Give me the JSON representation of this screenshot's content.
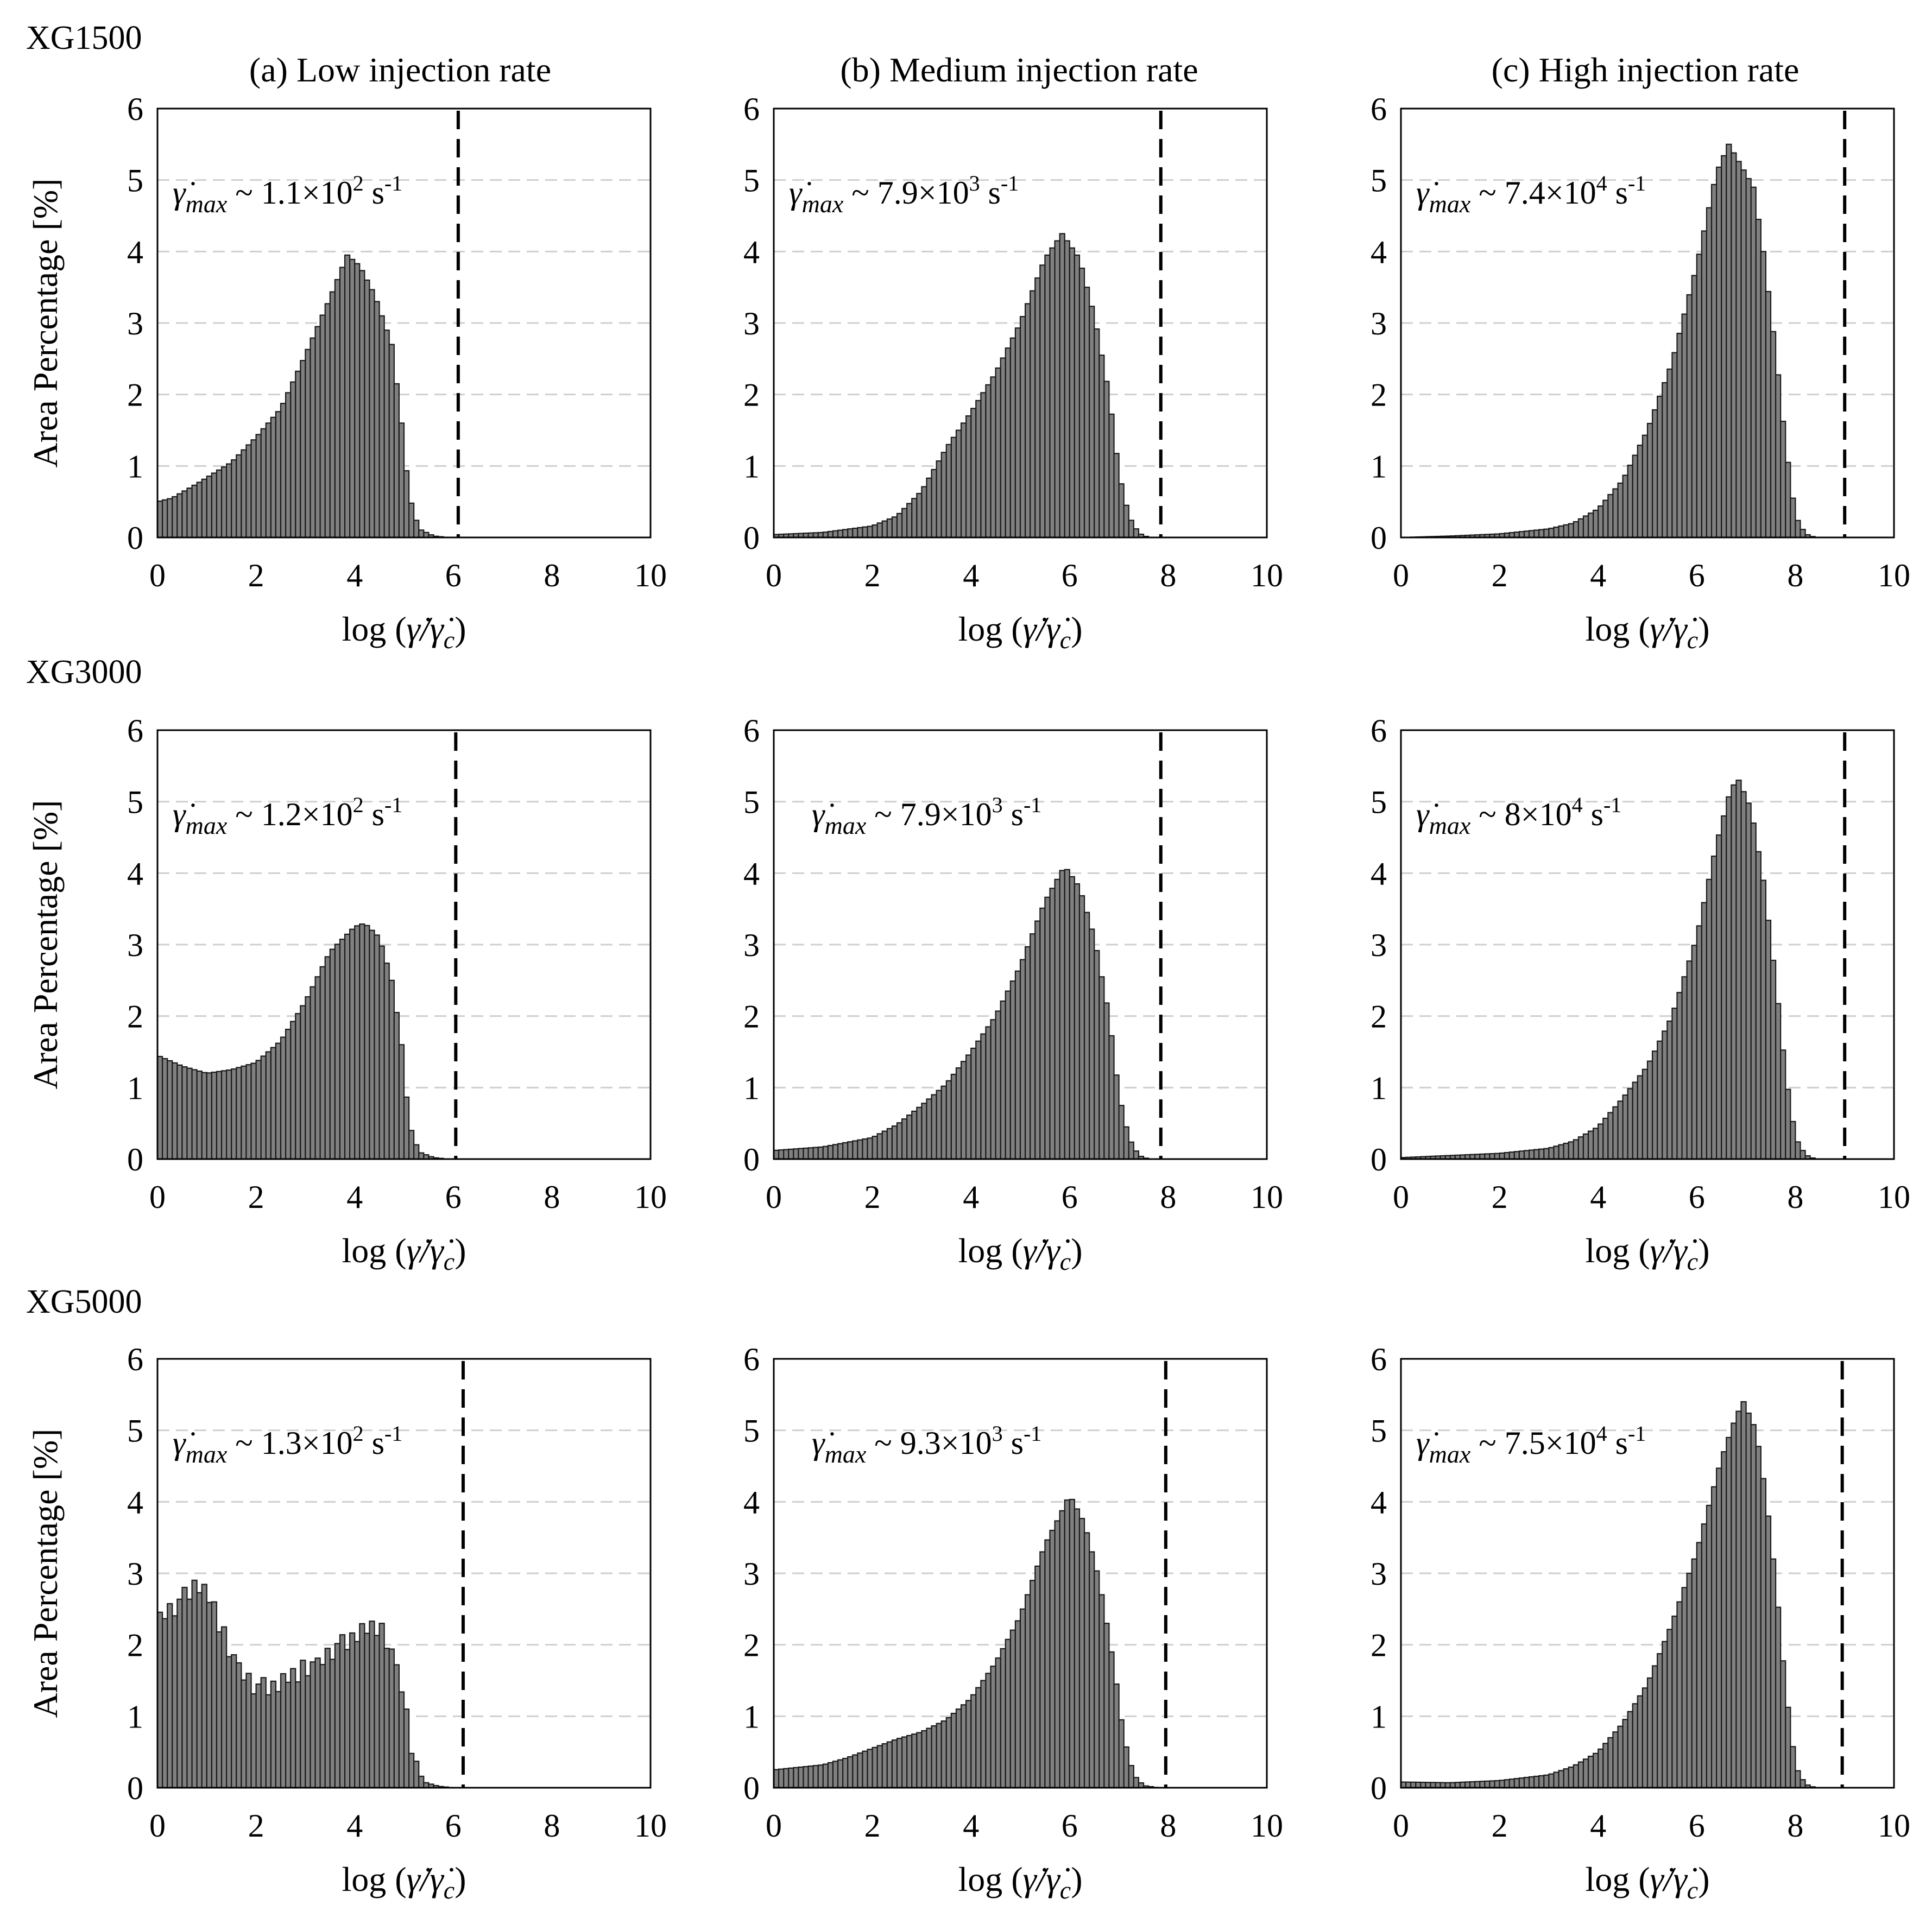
{
  "figure": {
    "row_labels": [
      "XG1500",
      "XG3000",
      "XG5000"
    ],
    "column_titles": [
      "(a) Low injection rate",
      "(b) Medium injection rate",
      "(c) High injection rate"
    ],
    "y_axis_label": "Area Percentage [%]",
    "x_axis_label": "log (γ̇/γ̇c)",
    "x_ticks": [
      "0",
      "2",
      "4",
      "6",
      "8",
      "10"
    ],
    "y_ticks": [
      "0",
      "1",
      "2",
      "3",
      "4",
      "5",
      "6"
    ]
  },
  "chart_data": [
    {
      "type": "bar",
      "row": 0,
      "col": 0,
      "title": "XG1500 (a) Low injection rate",
      "xlabel": "log (γ̇/γ̇c)",
      "ylabel": "Area Percentage [%]",
      "xlim": [
        0,
        10
      ],
      "ylim": [
        0,
        6
      ],
      "bin_width": 0.1,
      "annotation": {
        "prefix": "γ̇",
        "sub": "max",
        "text": " ~ 1.1×10",
        "exp": "2",
        "unit": " s",
        "unit_exp": "-1"
      },
      "critical_line_x": 6.1,
      "profile": [
        [
          0,
          0.5
        ],
        [
          0.3,
          0.55
        ],
        [
          0.8,
          0.75
        ],
        [
          1.5,
          1.05
        ],
        [
          2.0,
          1.4
        ],
        [
          2.5,
          1.8
        ],
        [
          3.0,
          2.55
        ],
        [
          3.5,
          3.35
        ],
        [
          3.85,
          3.95
        ],
        [
          4.1,
          3.8
        ],
        [
          4.4,
          3.4
        ],
        [
          4.75,
          2.7
        ],
        [
          4.95,
          1.6
        ],
        [
          5.1,
          0.6
        ],
        [
          5.3,
          0.12
        ],
        [
          5.6,
          0.02
        ],
        [
          5.9,
          0
        ]
      ]
    },
    {
      "type": "bar",
      "row": 0,
      "col": 1,
      "title": "XG1500 (b) Medium injection rate",
      "xlabel": "log (γ̇/γ̇c)",
      "ylabel": "Area Percentage [%]",
      "xlim": [
        0,
        10
      ],
      "ylim": [
        0,
        6
      ],
      "bin_width": 0.1,
      "annotation": {
        "prefix": "γ̇",
        "sub": "max",
        "text": " ~ 7.9×10",
        "exp": "3",
        "unit": " s",
        "unit_exp": "-1"
      },
      "critical_line_x": 7.85,
      "profile": [
        [
          0,
          0.04
        ],
        [
          1.0,
          0.07
        ],
        [
          2.0,
          0.16
        ],
        [
          2.5,
          0.3
        ],
        [
          3.0,
          0.65
        ],
        [
          3.5,
          1.25
        ],
        [
          4.0,
          1.75
        ],
        [
          4.5,
          2.3
        ],
        [
          5.0,
          3.0
        ],
        [
          5.5,
          3.9
        ],
        [
          5.85,
          4.25
        ],
        [
          6.2,
          3.9
        ],
        [
          6.5,
          3.1
        ],
        [
          6.8,
          2.0
        ],
        [
          7.0,
          0.9
        ],
        [
          7.2,
          0.3
        ],
        [
          7.4,
          0.06
        ],
        [
          7.6,
          0.0
        ]
      ]
    },
    {
      "type": "bar",
      "row": 0,
      "col": 2,
      "title": "XG1500 (c) High injection rate",
      "xlabel": "log (γ̇/γ̇c)",
      "ylabel": "Area Percentage [%]",
      "xlim": [
        0,
        10
      ],
      "ylim": [
        0,
        6
      ],
      "bin_width": 0.1,
      "annotation": {
        "prefix": "γ̇",
        "sub": "max",
        "text": " ~ 7.4×10",
        "exp": "4",
        "unit": " s",
        "unit_exp": "-1"
      },
      "critical_line_x": 9.0,
      "profile": [
        [
          0,
          0
        ],
        [
          1.0,
          0.02
        ],
        [
          2.0,
          0.05
        ],
        [
          3.0,
          0.12
        ],
        [
          3.5,
          0.2
        ],
        [
          4.0,
          0.4
        ],
        [
          4.5,
          0.8
        ],
        [
          5.0,
          1.5
        ],
        [
          5.5,
          2.45
        ],
        [
          6.0,
          3.8
        ],
        [
          6.4,
          5.1
        ],
        [
          6.65,
          5.5
        ],
        [
          6.9,
          5.2
        ],
        [
          7.15,
          4.9
        ],
        [
          7.35,
          4.0
        ],
        [
          7.6,
          2.6
        ],
        [
          7.8,
          1.3
        ],
        [
          8.0,
          0.3
        ],
        [
          8.2,
          0.05
        ],
        [
          8.4,
          0
        ]
      ]
    },
    {
      "type": "bar",
      "row": 1,
      "col": 0,
      "title": "XG3000 (a) Low injection rate",
      "xlabel": "log (γ̇/γ̇c)",
      "ylabel": "Area Percentage [%]",
      "xlim": [
        0,
        10
      ],
      "ylim": [
        0,
        6
      ],
      "bin_width": 0.1,
      "annotation": {
        "prefix": "γ̇",
        "sub": "max",
        "text": " ~ 1.2×10",
        "exp": "2",
        "unit": " s",
        "unit_exp": "-1"
      },
      "critical_line_x": 6.05,
      "profile": [
        [
          0,
          1.45
        ],
        [
          0.5,
          1.3
        ],
        [
          1.0,
          1.2
        ],
        [
          1.5,
          1.25
        ],
        [
          2.0,
          1.35
        ],
        [
          2.5,
          1.65
        ],
        [
          3.0,
          2.2
        ],
        [
          3.5,
          2.9
        ],
        [
          4.0,
          3.25
        ],
        [
          4.2,
          3.3
        ],
        [
          4.5,
          3.1
        ],
        [
          4.75,
          2.5
        ],
        [
          4.95,
          1.6
        ],
        [
          5.1,
          0.5
        ],
        [
          5.3,
          0.1
        ],
        [
          5.6,
          0.02
        ],
        [
          5.9,
          0
        ]
      ]
    },
    {
      "type": "bar",
      "row": 1,
      "col": 1,
      "title": "XG3000 (b) Medium injection rate",
      "xlabel": "log (γ̇/γ̇c)",
      "ylabel": "Area Percentage [%]",
      "xlim": [
        0,
        10
      ],
      "ylim": [
        0,
        6
      ],
      "bin_width": 0.1,
      "annotation": {
        "prefix": "γ̇",
        "sub": "max",
        "text": " ~ 7.9×10",
        "exp": "3",
        "unit": " s",
        "unit_exp": "-1"
      },
      "critical_line_x": 7.85,
      "profile": [
        [
          0,
          0.12
        ],
        [
          1.0,
          0.17
        ],
        [
          2.0,
          0.3
        ],
        [
          2.5,
          0.48
        ],
        [
          3.0,
          0.75
        ],
        [
          3.5,
          1.05
        ],
        [
          4.0,
          1.5
        ],
        [
          4.5,
          2.0
        ],
        [
          5.0,
          2.7
        ],
        [
          5.5,
          3.6
        ],
        [
          5.9,
          4.1
        ],
        [
          6.2,
          3.8
        ],
        [
          6.5,
          3.1
        ],
        [
          6.8,
          2.0
        ],
        [
          7.0,
          0.9
        ],
        [
          7.2,
          0.3
        ],
        [
          7.4,
          0.05
        ],
        [
          7.6,
          0.0
        ]
      ]
    },
    {
      "type": "bar",
      "row": 1,
      "col": 2,
      "title": "XG3000 (c) High injection rate",
      "xlabel": "log (γ̇/γ̇c)",
      "ylabel": "Area Percentage [%]",
      "xlim": [
        0,
        10
      ],
      "ylim": [
        0,
        6
      ],
      "bin_width": 0.1,
      "annotation": {
        "prefix": "γ̇",
        "sub": "max",
        "text": " ~ 8×10",
        "exp": "4",
        "unit": " s",
        "unit_exp": "-1"
      },
      "critical_line_x": 9.0,
      "profile": [
        [
          0,
          0.02
        ],
        [
          1.0,
          0.05
        ],
        [
          2.0,
          0.08
        ],
        [
          3.0,
          0.15
        ],
        [
          3.5,
          0.25
        ],
        [
          4.0,
          0.45
        ],
        [
          4.5,
          0.85
        ],
        [
          5.0,
          1.3
        ],
        [
          5.5,
          2.0
        ],
        [
          6.0,
          3.1
        ],
        [
          6.4,
          4.4
        ],
        [
          6.7,
          5.2
        ],
        [
          6.85,
          5.3
        ],
        [
          7.1,
          4.9
        ],
        [
          7.35,
          3.9
        ],
        [
          7.6,
          2.5
        ],
        [
          7.8,
          1.2
        ],
        [
          8.0,
          0.3
        ],
        [
          8.2,
          0.06
        ],
        [
          8.4,
          0
        ]
      ]
    },
    {
      "type": "bar",
      "row": 2,
      "col": 0,
      "title": "XG5000 (a) Low injection rate",
      "xlabel": "log (γ̇/γ̇c)",
      "ylabel": "Area Percentage [%]",
      "xlim": [
        0,
        10
      ],
      "ylim": [
        0,
        6
      ],
      "bin_width": 0.1,
      "annotation": {
        "prefix": "γ̇",
        "sub": "max",
        "text": " ~ 1.3×10",
        "exp": "2",
        "unit": " s",
        "unit_exp": "-1"
      },
      "critical_line_x": 6.2,
      "profile": [
        [
          0,
          2.35
        ],
        [
          0.4,
          2.55
        ],
        [
          0.8,
          2.85
        ],
        [
          1.1,
          2.6
        ],
        [
          1.4,
          2.0
        ],
        [
          1.7,
          1.6
        ],
        [
          2.0,
          1.4
        ],
        [
          2.4,
          1.4
        ],
        [
          2.7,
          1.55
        ],
        [
          3.0,
          1.65
        ],
        [
          3.3,
          1.75
        ],
        [
          3.6,
          1.95
        ],
        [
          3.9,
          2.05
        ],
        [
          4.2,
          2.2
        ],
        [
          4.45,
          2.25
        ],
        [
          4.7,
          2.0
        ],
        [
          4.95,
          1.4
        ],
        [
          5.2,
          0.4
        ],
        [
          5.4,
          0.08
        ],
        [
          5.7,
          0.02
        ],
        [
          6.0,
          0
        ]
      ],
      "jitter": [
        0.08,
        -0.06,
        0.1,
        -0.12,
        0.05,
        0.14,
        -0.1,
        0.09,
        -0.08,
        0.12,
        -0.05,
        0.1,
        -0.12,
        0.15,
        -0.1,
        0.06
      ]
    },
    {
      "type": "bar",
      "row": 2,
      "col": 1,
      "title": "XG5000 (b) Medium injection rate",
      "xlabel": "log (γ̇/γ̇c)",
      "ylabel": "Area Percentage [%]",
      "xlim": [
        0,
        10
      ],
      "ylim": [
        0,
        6
      ],
      "bin_width": 0.1,
      "annotation": {
        "prefix": "γ̇",
        "sub": "max",
        "text": " ~ 9.3×10",
        "exp": "3",
        "unit": " s",
        "unit_exp": "-1"
      },
      "critical_line_x": 7.95,
      "profile": [
        [
          0,
          0.25
        ],
        [
          1.0,
          0.32
        ],
        [
          1.5,
          0.42
        ],
        [
          2.0,
          0.55
        ],
        [
          2.5,
          0.68
        ],
        [
          3.0,
          0.78
        ],
        [
          3.5,
          0.95
        ],
        [
          4.0,
          1.25
        ],
        [
          4.5,
          1.75
        ],
        [
          5.0,
          2.4
        ],
        [
          5.5,
          3.4
        ],
        [
          5.8,
          3.8
        ],
        [
          6.0,
          4.1
        ],
        [
          6.3,
          3.7
        ],
        [
          6.6,
          2.9
        ],
        [
          6.9,
          1.7
        ],
        [
          7.1,
          0.7
        ],
        [
          7.3,
          0.18
        ],
        [
          7.5,
          0.03
        ],
        [
          7.8,
          0
        ]
      ]
    },
    {
      "type": "bar",
      "row": 2,
      "col": 2,
      "title": "XG5000 (c) High injection rate",
      "xlabel": "log (γ̇/γ̇c)",
      "ylabel": "Area Percentage [%]",
      "xlim": [
        0,
        10
      ],
      "ylim": [
        0,
        6
      ],
      "bin_width": 0.1,
      "annotation": {
        "prefix": "γ̇",
        "sub": "max",
        "text": " ~ 7.5×10",
        "exp": "4",
        "unit": " s",
        "unit_exp": "-1"
      },
      "critical_line_x": 8.95,
      "profile": [
        [
          0,
          0.08
        ],
        [
          1.0,
          0.07
        ],
        [
          2.0,
          0.1
        ],
        [
          3.0,
          0.18
        ],
        [
          3.5,
          0.3
        ],
        [
          4.0,
          0.5
        ],
        [
          4.5,
          0.9
        ],
        [
          5.0,
          1.45
        ],
        [
          5.5,
          2.3
        ],
        [
          6.0,
          3.3
        ],
        [
          6.5,
          4.6
        ],
        [
          6.8,
          5.2
        ],
        [
          6.95,
          5.4
        ],
        [
          7.2,
          5.0
        ],
        [
          7.4,
          4.1
        ],
        [
          7.6,
          2.9
        ],
        [
          7.8,
          1.4
        ],
        [
          8.0,
          0.3
        ],
        [
          8.2,
          0.05
        ],
        [
          8.4,
          0
        ]
      ]
    }
  ]
}
